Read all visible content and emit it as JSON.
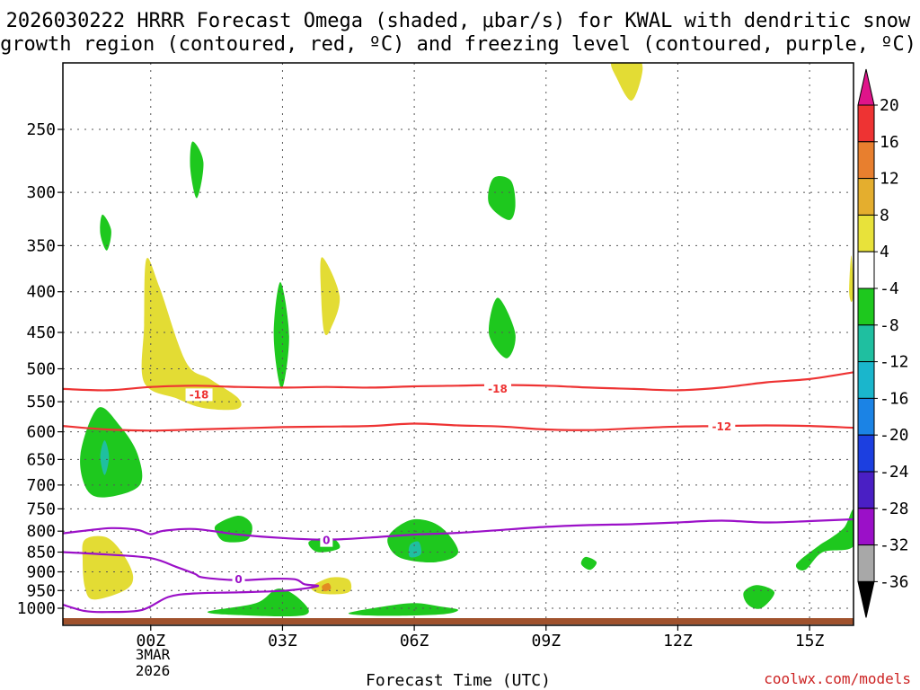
{
  "chart_data": {
    "type": "heatmap",
    "title_lines": [
      "2026030222 HRRR Forecast Omega (shaded, μbar/s) for KWAL with dendritic snow",
      "growth region (contoured, red, ºC) and freezing level (contoured, purple, ºC)"
    ],
    "xlabel": "Forecast Time (UTC)",
    "x_ticks": [
      {
        "t": 0,
        "label": "00Z"
      },
      {
        "t": 3,
        "label": "03Z"
      },
      {
        "t": 6,
        "label": "06Z"
      },
      {
        "t": 9,
        "label": "09Z"
      },
      {
        "t": 12,
        "label": "12Z"
      },
      {
        "t": 15,
        "label": "15Z"
      }
    ],
    "x_sub_label": [
      "3MAR",
      "2026"
    ],
    "x_range": [
      -2,
      16
    ],
    "y_ticks": [
      250,
      300,
      350,
      400,
      450,
      500,
      550,
      600,
      650,
      700,
      750,
      800,
      850,
      900,
      950,
      1000
    ],
    "y_range_hpa": [
      200,
      1030
    ],
    "omega_regions": [
      {
        "color": "#e3dc34",
        "pts": [
          [
            10.5,
            205
          ],
          [
            11.0,
            202
          ],
          [
            11.2,
            210
          ],
          [
            10.95,
            230
          ],
          [
            10.6,
            215
          ]
        ]
      },
      {
        "color": "#e3dc34",
        "pts": [
          [
            -0.1,
            364
          ],
          [
            0.2,
            395
          ],
          [
            0.8,
            490
          ],
          [
            1.35,
            515
          ],
          [
            2.0,
            545
          ],
          [
            1.95,
            562
          ],
          [
            1.2,
            560
          ],
          [
            0.6,
            545
          ],
          [
            -0.15,
            520
          ],
          [
            -0.15,
            440
          ]
        ]
      },
      {
        "color": "#e3dc34",
        "pts": [
          [
            3.9,
            362
          ],
          [
            4.3,
            405
          ],
          [
            4.1,
            445
          ],
          [
            3.95,
            450
          ],
          [
            3.88,
            405
          ]
        ]
      },
      {
        "color": "#e3dc34",
        "pts": [
          [
            15.95,
            360
          ],
          [
            16.0,
            400
          ],
          [
            15.95,
            412
          ],
          [
            15.9,
            398
          ]
        ]
      },
      {
        "color": "#e3dc34",
        "pts": [
          [
            -1.5,
            820
          ],
          [
            -1.0,
            815
          ],
          [
            -0.6,
            860
          ],
          [
            -0.4,
            915
          ],
          [
            -0.6,
            950
          ],
          [
            -1.3,
            975
          ],
          [
            -1.5,
            940
          ],
          [
            -1.55,
            870
          ]
        ]
      },
      {
        "color": "#e3dc34",
        "pts": [
          [
            3.7,
            935
          ],
          [
            4.1,
            915
          ],
          [
            4.5,
            920
          ],
          [
            4.55,
            950
          ],
          [
            4.3,
            960
          ],
          [
            3.85,
            958
          ],
          [
            3.65,
            945
          ]
        ]
      },
      {
        "color": "#e28a22",
        "pts": [
          [
            3.9,
            938
          ],
          [
            4.05,
            930
          ],
          [
            4.1,
            945
          ],
          [
            3.95,
            952
          ]
        ]
      },
      {
        "color": "#1ec81e",
        "pts": [
          [
            0.95,
            259
          ],
          [
            1.2,
            275
          ],
          [
            1.05,
            305
          ],
          [
            0.9,
            280
          ]
        ]
      },
      {
        "color": "#1ec81e",
        "pts": [
          [
            -1.1,
            320
          ],
          [
            -0.9,
            335
          ],
          [
            -1.0,
            355
          ],
          [
            -1.15,
            338
          ]
        ]
      },
      {
        "color": "#1ec81e",
        "pts": [
          [
            7.8,
            288
          ],
          [
            8.2,
            290
          ],
          [
            8.3,
            312
          ],
          [
            8.15,
            325
          ],
          [
            7.7,
            310
          ]
        ]
      },
      {
        "color": "#1ec81e",
        "pts": [
          [
            2.95,
            389
          ],
          [
            3.15,
            455
          ],
          [
            2.98,
            530
          ],
          [
            2.8,
            455
          ]
        ]
      },
      {
        "color": "#1ec81e",
        "pts": [
          [
            7.9,
            407
          ],
          [
            8.3,
            452
          ],
          [
            8.1,
            485
          ],
          [
            7.7,
            452
          ]
        ]
      },
      {
        "color": "#1ec81e",
        "pts": [
          [
            -1.2,
            560
          ],
          [
            -0.7,
            590
          ],
          [
            -0.3,
            640
          ],
          [
            -0.25,
            700
          ],
          [
            -1.0,
            725
          ],
          [
            -1.45,
            710
          ],
          [
            -1.6,
            640
          ]
        ]
      },
      {
        "color": "#1fbfa0",
        "pts": [
          [
            -1.05,
            615
          ],
          [
            -0.95,
            645
          ],
          [
            -1.05,
            680
          ],
          [
            -1.15,
            645
          ]
        ]
      },
      {
        "color": "#1ec81e",
        "pts": [
          [
            1.5,
            785
          ],
          [
            2.0,
            765
          ],
          [
            2.3,
            785
          ],
          [
            2.2,
            820
          ],
          [
            1.7,
            825
          ],
          [
            1.5,
            805
          ]
        ]
      },
      {
        "color": "#1ec81e",
        "pts": [
          [
            3.6,
            825
          ],
          [
            4.1,
            815
          ],
          [
            4.3,
            840
          ],
          [
            3.8,
            850
          ]
        ]
      },
      {
        "color": "#1ec81e",
        "pts": [
          [
            5.5,
            800
          ],
          [
            6.0,
            773
          ],
          [
            6.6,
            790
          ],
          [
            7.0,
            850
          ],
          [
            6.5,
            875
          ],
          [
            5.7,
            865
          ],
          [
            5.4,
            830
          ]
        ]
      },
      {
        "color": "#1fbfa0",
        "pts": [
          [
            5.9,
            833
          ],
          [
            6.1,
            825
          ],
          [
            6.15,
            855
          ],
          [
            5.9,
            862
          ]
        ]
      },
      {
        "color": "#1ec81e",
        "pts": [
          [
            9.9,
            862
          ],
          [
            10.15,
            875
          ],
          [
            10.0,
            895
          ],
          [
            9.8,
            880
          ]
        ]
      },
      {
        "color": "#1ec81e",
        "pts": [
          [
            14.7,
            880
          ],
          [
            15.2,
            835
          ],
          [
            15.5,
            815
          ],
          [
            15.8,
            790
          ],
          [
            16.0,
            752
          ],
          [
            16.0,
            835
          ],
          [
            15.3,
            850
          ],
          [
            14.9,
            895
          ]
        ]
      },
      {
        "color": "#1ec81e",
        "pts": [
          [
            13.5,
            955
          ],
          [
            13.8,
            935
          ],
          [
            14.2,
            955
          ],
          [
            13.9,
            1000
          ],
          [
            13.6,
            990
          ]
        ]
      },
      {
        "color": "#1ec81e",
        "pts": [
          [
            1.3,
            1010
          ],
          [
            2.4,
            985
          ],
          [
            2.9,
            945
          ],
          [
            3.4,
            975
          ],
          [
            3.5,
            1020
          ],
          [
            2.0,
            1020
          ]
        ]
      },
      {
        "color": "#1ec81e",
        "pts": [
          [
            4.5,
            1015
          ],
          [
            5.3,
            995
          ],
          [
            6.0,
            985
          ],
          [
            6.6,
            995
          ],
          [
            7.0,
            1005
          ],
          [
            6.6,
            1018
          ],
          [
            5.3,
            1022
          ]
        ]
      }
    ],
    "contours": [
      {
        "color": "#ee3333",
        "label": "-18",
        "label_at": [
          1.1,
          539
        ],
        "pts": [
          [
            -2,
            530
          ],
          [
            -1,
            532
          ],
          [
            0,
            527
          ],
          [
            1,
            525
          ],
          [
            2,
            527
          ],
          [
            3,
            528
          ],
          [
            4,
            527
          ],
          [
            5,
            528
          ],
          [
            6,
            526
          ],
          [
            7,
            525
          ],
          [
            8,
            524
          ],
          [
            9,
            525
          ],
          [
            10,
            528
          ],
          [
            11,
            530
          ],
          [
            12,
            532
          ],
          [
            13,
            528
          ],
          [
            14,
            520
          ],
          [
            15,
            515
          ],
          [
            16,
            505
          ]
        ]
      },
      {
        "color": "#ee3333",
        "label": "-18",
        "label_at": [
          7.9,
          530
        ],
        "pts": []
      },
      {
        "color": "#ee3333",
        "label": "-12",
        "label_at": [
          13.0,
          591
        ],
        "pts": [
          [
            -2,
            590
          ],
          [
            -1,
            596
          ],
          [
            0,
            598
          ],
          [
            1,
            596
          ],
          [
            2,
            594
          ],
          [
            3,
            592
          ],
          [
            4,
            591
          ],
          [
            5,
            590
          ],
          [
            6,
            586
          ],
          [
            7,
            589
          ],
          [
            8,
            591
          ],
          [
            9,
            596
          ],
          [
            10,
            597
          ],
          [
            11,
            594
          ],
          [
            12,
            591
          ],
          [
            13,
            590
          ],
          [
            14,
            589
          ],
          [
            15,
            590
          ],
          [
            16,
            593
          ]
        ]
      },
      {
        "color": "#9b10c8",
        "label": "0",
        "label_at": [
          4.0,
          822
        ],
        "pts": [
          [
            -2,
            805
          ],
          [
            -1.5,
            799
          ],
          [
            -0.9,
            793
          ],
          [
            -0.3,
            797
          ],
          [
            0,
            807
          ],
          [
            0.3,
            799
          ],
          [
            1,
            795
          ],
          [
            2,
            808
          ],
          [
            3,
            816
          ],
          [
            4,
            820
          ],
          [
            5,
            815
          ],
          [
            6,
            808
          ],
          [
            7,
            804
          ],
          [
            8,
            797
          ],
          [
            9,
            790
          ],
          [
            10,
            786
          ],
          [
            11,
            784
          ],
          [
            12,
            780
          ],
          [
            13,
            776
          ],
          [
            14,
            780
          ],
          [
            15,
            777
          ],
          [
            16,
            773
          ]
        ]
      },
      {
        "color": "#9b10c8",
        "label": "0",
        "label_at": [
          2.0,
          920
        ],
        "pts": [
          [
            -2,
            850
          ],
          [
            -1,
            856
          ],
          [
            0,
            865
          ],
          [
            0.6,
            888
          ],
          [
            1.0,
            905
          ],
          [
            1.2,
            915
          ],
          [
            2.0,
            922
          ],
          [
            2.8,
            918
          ],
          [
            3.3,
            920
          ],
          [
            3.5,
            933
          ],
          [
            3.8,
            938
          ],
          [
            3.1,
            950
          ],
          [
            2.0,
            955
          ],
          [
            1.0,
            958
          ],
          [
            0.4,
            968
          ],
          [
            -0.2,
            1005
          ],
          [
            -1,
            1011
          ],
          [
            -1.5,
            1008
          ],
          [
            -2,
            990
          ]
        ]
      }
    ],
    "ground_color": "#a0522d",
    "colorbar": {
      "labels": [
        "20",
        "16",
        "12",
        "8",
        "4",
        "-4",
        "-8",
        "-12",
        "-16",
        "-20",
        "-24",
        "-28",
        "-32",
        "-36"
      ],
      "colors": [
        "#ee3333",
        "#e87f2e",
        "#e4ae2e",
        "#e8e23a",
        "#ffffff",
        "#1ec81e",
        "#1fbfa0",
        "#1ab6cc",
        "#1b83e5",
        "#1c3fe0",
        "#4a1fc4",
        "#9b10c8",
        "#a8a8a8"
      ],
      "top_color": "#e0148a",
      "bottom_color": "#000000"
    }
  },
  "footer": {
    "credit": "coolwx.com/models"
  }
}
